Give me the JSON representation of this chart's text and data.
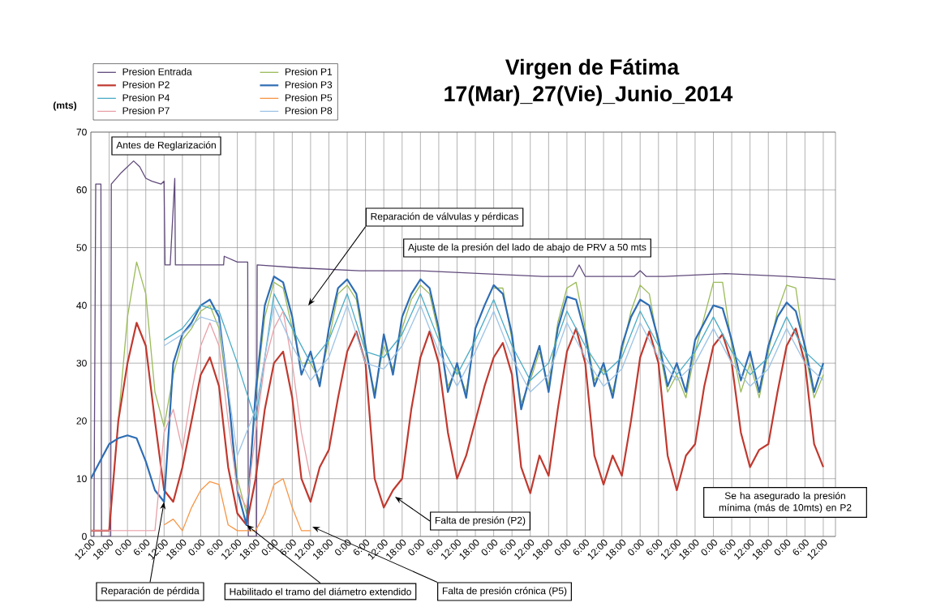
{
  "chart_data": {
    "type": "line",
    "title": "Virgen de Fátima",
    "subtitle": "17(Mar)_27(Vie)_Junio_2014",
    "ylabel": "(mts)",
    "xlim": [
      "2014-06-17T12:00",
      "2014-06-27T16:00"
    ],
    "ylim": [
      0,
      70
    ],
    "yticks": [
      0,
      10,
      20,
      30,
      40,
      50,
      60,
      70
    ],
    "xticks": [
      {
        "value": "2014-06-17T12:00",
        "label": "12:00"
      },
      {
        "value": "2014-06-17T18:00",
        "label": "18:00"
      },
      {
        "value": "2014-06-18T00:00",
        "label": "0:00"
      },
      {
        "value": "2014-06-18T06:00",
        "label": "6:00"
      },
      {
        "value": "2014-06-18T12:00",
        "label": "12:00"
      },
      {
        "value": "2014-06-18T18:00",
        "label": "18:00"
      },
      {
        "value": "2014-06-19T00:00",
        "label": "0:00"
      },
      {
        "value": "2014-06-19T06:00",
        "label": "6:00"
      },
      {
        "value": "2014-06-19T12:00",
        "label": "12:00"
      },
      {
        "value": "2014-06-19T18:00",
        "label": "18:00"
      },
      {
        "value": "2014-06-20T00:00",
        "label": "0:00"
      },
      {
        "value": "2014-06-20T06:00",
        "label": "6:00"
      },
      {
        "value": "2014-06-20T12:00",
        "label": "12:00"
      },
      {
        "value": "2014-06-20T18:00",
        "label": "18:00"
      },
      {
        "value": "2014-06-21T00:00",
        "label": "0:00"
      },
      {
        "value": "2014-06-21T06:00",
        "label": "6:00"
      },
      {
        "value": "2014-06-21T12:00",
        "label": "12:00"
      },
      {
        "value": "2014-06-21T18:00",
        "label": "18:00"
      },
      {
        "value": "2014-06-22T00:00",
        "label": "0:00"
      },
      {
        "value": "2014-06-22T06:00",
        "label": "6:00"
      },
      {
        "value": "2014-06-22T12:00",
        "label": "12:00"
      },
      {
        "value": "2014-06-22T18:00",
        "label": "18:00"
      },
      {
        "value": "2014-06-23T00:00",
        "label": "0:00"
      },
      {
        "value": "2014-06-23T06:00",
        "label": "6:00"
      },
      {
        "value": "2014-06-23T12:00",
        "label": "12:00"
      },
      {
        "value": "2014-06-23T18:00",
        "label": "18:00"
      },
      {
        "value": "2014-06-24T00:00",
        "label": "0:00"
      },
      {
        "value": "2014-06-24T06:00",
        "label": "6:00"
      },
      {
        "value": "2014-06-24T12:00",
        "label": "12:00"
      },
      {
        "value": "2014-06-24T18:00",
        "label": "18:00"
      },
      {
        "value": "2014-06-25T00:00",
        "label": "0:00"
      },
      {
        "value": "2014-06-25T06:00",
        "label": "6:00"
      },
      {
        "value": "2014-06-25T12:00",
        "label": "12:00"
      },
      {
        "value": "2014-06-25T18:00",
        "label": "18:00"
      },
      {
        "value": "2014-06-26T00:00",
        "label": "0:00"
      },
      {
        "value": "2014-06-26T06:00",
        "label": "6:00"
      },
      {
        "value": "2014-06-26T12:00",
        "label": "12:00"
      },
      {
        "value": "2014-06-26T18:00",
        "label": "18:00"
      },
      {
        "value": "2014-06-27T00:00",
        "label": "0:00"
      },
      {
        "value": "2014-06-27T06:00",
        "label": "6:00"
      },
      {
        "value": "2014-06-27T12:00",
        "label": "12:00"
      }
    ],
    "grid": true,
    "legend": "top left",
    "x": [
      "2014-06-17T12:00",
      "2014-06-17T15:00",
      "2014-06-17T18:00",
      "2014-06-17T21:00",
      "2014-06-18T00:00",
      "2014-06-18T03:00",
      "2014-06-18T06:00",
      "2014-06-18T09:00",
      "2014-06-18T12:00",
      "2014-06-18T15:00",
      "2014-06-18T18:00",
      "2014-06-18T21:00",
      "2014-06-19T00:00",
      "2014-06-19T03:00",
      "2014-06-19T06:00",
      "2014-06-19T09:00",
      "2014-06-19T12:00",
      "2014-06-19T15:00",
      "2014-06-19T18:00",
      "2014-06-19T21:00",
      "2014-06-20T00:00",
      "2014-06-20T03:00",
      "2014-06-20T06:00",
      "2014-06-20T09:00",
      "2014-06-20T12:00",
      "2014-06-20T15:00",
      "2014-06-20T18:00",
      "2014-06-20T21:00",
      "2014-06-21T00:00",
      "2014-06-21T03:00",
      "2014-06-21T06:00",
      "2014-06-21T09:00",
      "2014-06-21T12:00",
      "2014-06-21T15:00",
      "2014-06-21T18:00",
      "2014-06-21T21:00",
      "2014-06-22T00:00",
      "2014-06-22T03:00",
      "2014-06-22T06:00",
      "2014-06-22T09:00",
      "2014-06-22T12:00",
      "2014-06-22T15:00",
      "2014-06-22T18:00",
      "2014-06-22T21:00",
      "2014-06-23T00:00",
      "2014-06-23T03:00",
      "2014-06-23T06:00",
      "2014-06-23T09:00",
      "2014-06-23T12:00",
      "2014-06-23T15:00",
      "2014-06-23T18:00",
      "2014-06-23T21:00",
      "2014-06-24T00:00",
      "2014-06-24T03:00",
      "2014-06-24T06:00",
      "2014-06-24T09:00",
      "2014-06-24T12:00",
      "2014-06-24T15:00",
      "2014-06-24T18:00",
      "2014-06-24T21:00",
      "2014-06-25T00:00",
      "2014-06-25T03:00",
      "2014-06-25T06:00",
      "2014-06-25T09:00",
      "2014-06-25T12:00",
      "2014-06-25T15:00",
      "2014-06-25T18:00",
      "2014-06-25T21:00",
      "2014-06-26T00:00",
      "2014-06-26T03:00",
      "2014-06-26T06:00",
      "2014-06-26T09:00",
      "2014-06-26T12:00",
      "2014-06-26T15:00",
      "2014-06-26T18:00",
      "2014-06-26T21:00",
      "2014-06-27T00:00",
      "2014-06-27T03:00",
      "2014-06-27T06:00",
      "2014-06-27T09:00",
      "2014-06-27T12:00"
    ],
    "series": [
      {
        "name": "Presion Entrada",
        "color": "#604a7b",
        "x": [
          "2014-06-17T12:00",
          "2014-06-17T13:00",
          "2014-06-17T13:36",
          "2014-06-17T15:18",
          "2014-06-17T15:30",
          "2014-06-17T18:30",
          "2014-06-17T18:42",
          "2014-06-17T22:00",
          "2014-06-18T02:00",
          "2014-06-18T04:00",
          "2014-06-18T06:00",
          "2014-06-18T08:00",
          "2014-06-18T11:00",
          "2014-06-18T12:00",
          "2014-06-18T12:18",
          "2014-06-18T14:00",
          "2014-06-18T15:30",
          "2014-06-18T15:42",
          "2014-06-18T18:00",
          "2014-06-19T02:00",
          "2014-06-19T07:30",
          "2014-06-19T07:42",
          "2014-06-19T12:00",
          "2014-06-19T15:24",
          "2014-06-19T15:36",
          "2014-06-19T18:18",
          "2014-06-19T18:30",
          "2014-06-20T08:00",
          "2014-06-21T04:00",
          "2014-06-22T00:00",
          "2014-06-22T20:00",
          "2014-06-23T16:00",
          "2014-06-24T02:00",
          "2014-06-24T04:00",
          "2014-06-24T06:00",
          "2014-06-24T12:00",
          "2014-06-24T22:00",
          "2014-06-25T00:00",
          "2014-06-25T02:00",
          "2014-06-25T08:00",
          "2014-06-26T04:00",
          "2014-06-27T00:00",
          "2014-06-27T16:00"
        ],
        "values": [
          0,
          0,
          61,
          61,
          0,
          0,
          61,
          63,
          65,
          64,
          62,
          61.5,
          61,
          61.5,
          47,
          47,
          62,
          47,
          47,
          47,
          47,
          48.5,
          47.5,
          47.5,
          0,
          0,
          47,
          46.5,
          46,
          46,
          45.5,
          45,
          45,
          47,
          45,
          45,
          45,
          46,
          45,
          45,
          45.5,
          45,
          44.5
        ]
      },
      {
        "name": "Presion P1",
        "color": "#9bbb59",
        "values": [
          null,
          null,
          null,
          20,
          38,
          47.5,
          42,
          25,
          19,
          28,
          34,
          36,
          39,
          40,
          36,
          24,
          10,
          4,
          24,
          38,
          44,
          43,
          36,
          30,
          30,
          27,
          34,
          42,
          43.5,
          41,
          32,
          25,
          33,
          29,
          36,
          41,
          43.5,
          42,
          35,
          26,
          29,
          25,
          35,
          null,
          43,
          43,
          34,
          23,
          27,
          32,
          26,
          37,
          43,
          44,
          36,
          27,
          29,
          25,
          32,
          39,
          43.5,
          42,
          33,
          25,
          28,
          24,
          32,
          38,
          44,
          44,
          33,
          25,
          30,
          24,
          32,
          39,
          43.5,
          43,
          32,
          24,
          28
        ]
      },
      {
        "name": "Presion P2",
        "color": "#c0392f",
        "values": [
          1,
          1,
          1,
          20,
          30,
          37,
          33,
          20,
          8,
          6,
          12,
          20,
          28,
          31,
          26,
          12,
          4,
          2,
          10,
          22,
          30,
          32,
          24,
          10,
          6,
          12,
          15,
          24,
          32,
          35.5,
          30,
          10,
          5,
          8,
          10,
          22,
          31,
          35.5,
          30,
          18,
          10,
          14,
          20,
          26,
          31,
          33.5,
          28,
          12,
          7.5,
          14,
          10.5,
          22,
          32,
          36,
          30,
          14,
          9,
          14,
          10.5,
          20,
          31,
          35.5,
          30,
          14,
          8,
          14,
          16,
          26,
          33,
          35,
          30,
          18,
          12,
          15,
          16,
          25,
          33,
          36,
          30,
          16,
          12
        ]
      },
      {
        "name": "Presion P3",
        "color": "#2e6db4",
        "values": [
          10,
          13,
          16,
          17,
          17.5,
          17,
          13,
          8,
          6,
          30,
          35,
          37,
          40,
          41,
          38,
          25,
          8,
          2,
          25,
          40,
          45,
          44,
          38,
          28,
          32,
          26,
          36,
          43,
          44.5,
          42,
          33,
          24,
          35,
          28,
          38,
          42,
          44.5,
          43,
          36,
          25,
          30,
          24,
          36,
          40,
          43.5,
          42,
          35,
          22,
          28,
          33,
          25,
          36,
          41.5,
          41,
          35,
          26,
          30,
          24,
          33,
          38,
          41,
          40,
          34,
          26,
          30,
          25,
          34,
          37,
          40,
          39.5,
          34,
          27,
          32,
          25,
          33,
          38,
          40.5,
          39,
          33,
          25,
          30
        ]
      },
      {
        "name": "Presion P4",
        "color": "#4bacc6",
        "x": [
          "2014-06-18T12:00",
          "2014-06-18T18:00",
          "2014-06-19T00:00",
          "2014-06-19T06:00",
          "2014-06-19T12:00",
          "2014-06-19T18:00",
          "2014-06-20T00:00",
          "2014-06-20T06:00",
          "2014-06-20T12:00",
          "2014-06-20T18:00",
          "2014-06-21T00:00",
          "2014-06-21T06:00",
          "2014-06-21T12:00",
          "2014-06-21T18:00",
          "2014-06-22T00:00",
          "2014-06-22T06:00",
          "2014-06-22T12:00",
          "2014-06-22T18:00",
          "2014-06-23T00:00",
          "2014-06-23T06:00",
          "2014-06-23T12:00",
          "2014-06-23T18:00",
          "2014-06-24T00:00",
          "2014-06-24T06:00",
          "2014-06-24T12:00",
          "2014-06-24T18:00",
          "2014-06-25T00:00",
          "2014-06-25T06:00",
          "2014-06-25T12:00",
          "2014-06-25T18:00",
          "2014-06-26T00:00",
          "2014-06-26T06:00",
          "2014-06-26T12:00",
          "2014-06-26T18:00",
          "2014-06-27T00:00",
          "2014-06-27T06:00",
          "2014-06-27T12:00"
        ],
        "values": [
          34,
          36,
          40,
          39,
          30,
          20,
          42,
          36,
          30,
          34,
          42,
          32,
          31,
          35,
          42,
          34,
          28,
          34,
          41,
          33,
          27,
          30,
          39,
          33,
          28,
          31,
          39,
          33,
          28,
          32,
          38,
          32,
          28,
          31,
          38,
          32,
          29
        ]
      },
      {
        "name": "Presion P5",
        "color": "#f79646",
        "x": [
          "2014-06-18T12:00",
          "2014-06-18T15:00",
          "2014-06-18T18:00",
          "2014-06-18T21:00",
          "2014-06-19T00:00",
          "2014-06-19T03:00",
          "2014-06-19T06:00",
          "2014-06-19T09:00",
          "2014-06-19T12:00",
          "2014-06-19T15:00",
          "2014-06-19T18:00",
          "2014-06-19T21:00",
          "2014-06-20T00:00",
          "2014-06-20T03:00",
          "2014-06-20T06:00",
          "2014-06-20T09:00",
          "2014-06-20T12:00"
        ],
        "values": [
          2,
          3,
          1,
          5,
          8,
          9.5,
          9,
          2,
          1,
          1,
          1,
          4,
          9,
          10,
          5,
          1,
          1
        ]
      },
      {
        "name": "Presion P7",
        "color": "#e8a0a8",
        "x": [
          "2014-06-17T12:00",
          "2014-06-17T15:00",
          "2014-06-17T18:00",
          "2014-06-17T21:00",
          "2014-06-18T00:00",
          "2014-06-18T03:00",
          "2014-06-18T06:00",
          "2014-06-18T09:00",
          "2014-06-18T12:00",
          "2014-06-18T15:00",
          "2014-06-18T18:00",
          "2014-06-18T21:00",
          "2014-06-19T00:00",
          "2014-06-19T03:00",
          "2014-06-19T06:00",
          "2014-06-19T09:00",
          "2014-06-19T12:00",
          "2014-06-19T15:00",
          "2014-06-19T18:00",
          "2014-06-19T21:00",
          "2014-06-20T00:00",
          "2014-06-20T03:00",
          "2014-06-20T06:00",
          "2014-06-20T09:00",
          "2014-06-20T12:00"
        ],
        "values": [
          1,
          1,
          1,
          1,
          1,
          1,
          1,
          1,
          18,
          22,
          15,
          25,
          33,
          37,
          33,
          20,
          8,
          5,
          18,
          30,
          36,
          39,
          30,
          18,
          10
        ]
      },
      {
        "name": "Presion P8",
        "color": "#9dc3e6",
        "x": [
          "2014-06-18T12:00",
          "2014-06-18T18:00",
          "2014-06-19T00:00",
          "2014-06-19T06:00",
          "2014-06-19T12:00",
          "2014-06-19T18:00",
          "2014-06-20T00:00",
          "2014-06-20T06:00",
          "2014-06-20T12:00",
          "2014-06-20T18:00",
          "2014-06-21T00:00",
          "2014-06-21T06:00",
          "2014-06-21T12:00",
          "2014-06-21T18:00",
          "2014-06-22T00:00",
          "2014-06-22T06:00",
          "2014-06-22T12:00",
          "2014-06-22T18:00",
          "2014-06-23T00:00",
          "2014-06-23T06:00",
          "2014-06-23T12:00",
          "2014-06-23T18:00",
          "2014-06-24T00:00",
          "2014-06-24T06:00",
          "2014-06-24T12:00",
          "2014-06-24T18:00",
          "2014-06-25T00:00",
          "2014-06-25T06:00",
          "2014-06-25T12:00",
          "2014-06-25T18:00",
          "2014-06-26T00:00",
          "2014-06-26T06:00",
          "2014-06-26T12:00",
          "2014-06-26T18:00",
          "2014-06-27T00:00",
          "2014-06-27T06:00",
          "2014-06-27T12:00"
        ],
        "values": [
          33,
          35,
          38,
          37,
          14,
          22,
          40,
          33,
          27,
          31,
          40,
          30,
          29,
          33,
          40,
          32,
          26,
          32,
          39,
          31,
          25,
          28,
          37,
          31,
          26,
          29,
          37,
          31,
          27,
          30,
          36,
          30,
          26,
          29,
          36,
          30,
          27
        ]
      }
    ],
    "annotations": [
      "Antes de Reglarización",
      "Reparación de válvulas y pérdicas",
      "Ajuste de la presión del lado de abajo de PRV a 50 mts",
      {
        "text": "Reparación de pérdida",
        "x": "2014-06-18T12:00",
        "y": 6
      },
      {
        "text": "Habilitado el tramo del diámetro extendido",
        "x": "2014-06-19T15:00",
        "y": 2
      },
      "Falta de presión crónica (P5)",
      "Falta de presión (P2)",
      "Se ha asegurado la presión mínima (más de 10mts) en P2"
    ]
  }
}
